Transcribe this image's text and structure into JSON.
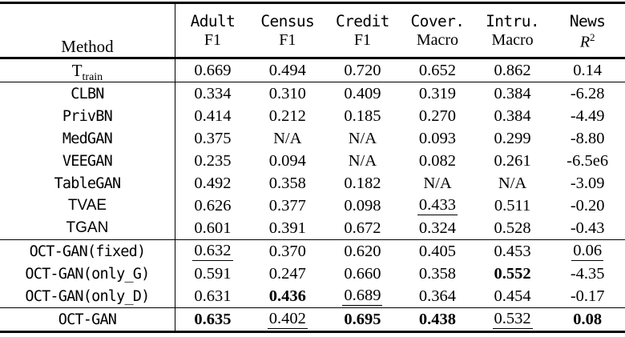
{
  "table": {
    "method_header": "Method",
    "columns": [
      {
        "dataset": "Adult",
        "metric": "F1"
      },
      {
        "dataset": "Census",
        "metric": "F1"
      },
      {
        "dataset": "Credit",
        "metric": "F1"
      },
      {
        "dataset": "Cover.",
        "metric": "Macro"
      },
      {
        "dataset": "Intru.",
        "metric": "Macro"
      },
      {
        "dataset": "News",
        "metric": "R2",
        "metric_base": "R",
        "metric_sup": "2"
      }
    ],
    "emphasis_legend": {
      "b": "best (bold)",
      "u": "second-best (underline)"
    },
    "groups": [
      {
        "rows": [
          {
            "label": "T",
            "label_sub": "train",
            "font": "serif",
            "cells": [
              {
                "v": "0.669",
                "em": ""
              },
              {
                "v": "0.494",
                "em": ""
              },
              {
                "v": "0.720",
                "em": ""
              },
              {
                "v": "0.652",
                "em": ""
              },
              {
                "v": "0.862",
                "em": ""
              },
              {
                "v": "0.14",
                "em": ""
              }
            ]
          }
        ]
      },
      {
        "rows": [
          {
            "label": "CLBN",
            "font": "mono",
            "cells": [
              {
                "v": "0.334",
                "em": ""
              },
              {
                "v": "0.310",
                "em": ""
              },
              {
                "v": "0.409",
                "em": ""
              },
              {
                "v": "0.319",
                "em": ""
              },
              {
                "v": "0.384",
                "em": ""
              },
              {
                "v": "-6.28",
                "em": ""
              }
            ]
          },
          {
            "label": "PrivBN",
            "font": "mono",
            "cells": [
              {
                "v": "0.414",
                "em": ""
              },
              {
                "v": "0.212",
                "em": ""
              },
              {
                "v": "0.185",
                "em": ""
              },
              {
                "v": "0.270",
                "em": ""
              },
              {
                "v": "0.384",
                "em": ""
              },
              {
                "v": "-4.49",
                "em": ""
              }
            ]
          },
          {
            "label": "MedGAN",
            "font": "mono",
            "cells": [
              {
                "v": "0.375",
                "em": ""
              },
              {
                "v": "N/A",
                "em": ""
              },
              {
                "v": "N/A",
                "em": ""
              },
              {
                "v": "0.093",
                "em": ""
              },
              {
                "v": "0.299",
                "em": ""
              },
              {
                "v": "-8.80",
                "em": ""
              }
            ]
          },
          {
            "label": "VEEGAN",
            "font": "mono",
            "cells": [
              {
                "v": "0.235",
                "em": ""
              },
              {
                "v": "0.094",
                "em": ""
              },
              {
                "v": "N/A",
                "em": ""
              },
              {
                "v": "0.082",
                "em": ""
              },
              {
                "v": "0.261",
                "em": ""
              },
              {
                "v": "-6.5e6",
                "em": ""
              }
            ]
          },
          {
            "label": "TableGAN",
            "font": "mono",
            "cells": [
              {
                "v": "0.492",
                "em": ""
              },
              {
                "v": "0.358",
                "em": ""
              },
              {
                "v": "0.182",
                "em": ""
              },
              {
                "v": "N/A",
                "em": ""
              },
              {
                "v": "N/A",
                "em": ""
              },
              {
                "v": "-3.09",
                "em": ""
              }
            ]
          },
          {
            "label": "TVAE",
            "font": "sans",
            "cells": [
              {
                "v": "0.626",
                "em": ""
              },
              {
                "v": "0.377",
                "em": ""
              },
              {
                "v": "0.098",
                "em": ""
              },
              {
                "v": "0.433",
                "em": "u"
              },
              {
                "v": "0.511",
                "em": ""
              },
              {
                "v": "-0.20",
                "em": ""
              }
            ]
          },
          {
            "label": "TGAN",
            "font": "sans",
            "cells": [
              {
                "v": "0.601",
                "em": ""
              },
              {
                "v": "0.391",
                "em": ""
              },
              {
                "v": "0.672",
                "em": ""
              },
              {
                "v": "0.324",
                "em": ""
              },
              {
                "v": "0.528",
                "em": ""
              },
              {
                "v": "-0.43",
                "em": ""
              }
            ]
          }
        ]
      },
      {
        "rows": [
          {
            "label": "OCT-GAN(fixed)",
            "font": "mono",
            "cells": [
              {
                "v": "0.632",
                "em": "u"
              },
              {
                "v": "0.370",
                "em": ""
              },
              {
                "v": "0.620",
                "em": ""
              },
              {
                "v": "0.405",
                "em": ""
              },
              {
                "v": "0.453",
                "em": ""
              },
              {
                "v": "0.06",
                "em": "u"
              }
            ]
          },
          {
            "label": "OCT-GAN(only_G)",
            "font": "mono",
            "cells": [
              {
                "v": "0.591",
                "em": ""
              },
              {
                "v": "0.247",
                "em": ""
              },
              {
                "v": "0.660",
                "em": ""
              },
              {
                "v": "0.358",
                "em": ""
              },
              {
                "v": "0.552",
                "em": "b"
              },
              {
                "v": "-4.35",
                "em": ""
              }
            ]
          },
          {
            "label": "OCT-GAN(only_D)",
            "font": "mono",
            "cells": [
              {
                "v": "0.631",
                "em": ""
              },
              {
                "v": "0.436",
                "em": "b"
              },
              {
                "v": "0.689",
                "em": "u"
              },
              {
                "v": "0.364",
                "em": ""
              },
              {
                "v": "0.454",
                "em": ""
              },
              {
                "v": "-0.17",
                "em": ""
              }
            ]
          }
        ]
      },
      {
        "rows": [
          {
            "label": "OCT-GAN",
            "font": "mono",
            "cells": [
              {
                "v": "0.635",
                "em": "b"
              },
              {
                "v": "0.402",
                "em": "u"
              },
              {
                "v": "0.695",
                "em": "b"
              },
              {
                "v": "0.438",
                "em": "b"
              },
              {
                "v": "0.532",
                "em": "u"
              },
              {
                "v": "0.08",
                "em": "b"
              }
            ]
          }
        ]
      }
    ]
  }
}
